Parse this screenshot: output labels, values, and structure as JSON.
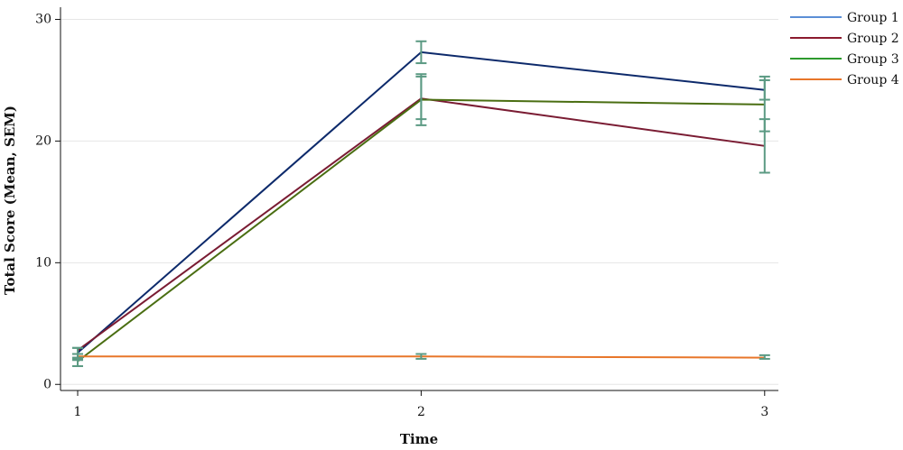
{
  "chart_data": {
    "type": "line",
    "xlabel": "Time",
    "ylabel": "Total Score (Mean, SEM)",
    "x": [
      1,
      2,
      3
    ],
    "x_tick_labels": [
      "1",
      "2",
      "3"
    ],
    "y_ticks": [
      0,
      10,
      20,
      30
    ],
    "y_tick_labels": [
      "0",
      "10",
      "20",
      "30"
    ],
    "xlim": [
      0.95,
      3.04
    ],
    "ylim": [
      -0.5,
      31
    ],
    "grid": "horizontal",
    "legend_position": "right",
    "error_bar_color": "#5b9a83",
    "series": [
      {
        "name": "Group 1",
        "legend_color": "#5b8fd6",
        "line_color": "#0d2a6b",
        "values": [
          2.6,
          27.3,
          24.2
        ],
        "sem_low": [
          2.0,
          26.4,
          23.4
        ],
        "sem_high": [
          3.0,
          28.2,
          25.0
        ]
      },
      {
        "name": "Group 2",
        "legend_color": "#8b1a2e",
        "line_color": "#7a1c33",
        "values": [
          2.8,
          23.5,
          19.6
        ],
        "sem_low": [
          2.2,
          21.8,
          17.4
        ],
        "sem_high": [
          3.0,
          25.3,
          21.8
        ]
      },
      {
        "name": "Group 3",
        "legend_color": "#2d9a2d",
        "line_color": "#4a6e12",
        "values": [
          1.9,
          23.4,
          23.0
        ],
        "sem_low": [
          1.5,
          21.3,
          20.8
        ],
        "sem_high": [
          2.5,
          25.5,
          25.3
        ]
      },
      {
        "name": "Group 4",
        "legend_color": "#e8762a",
        "line_color": "#e8762a",
        "values": [
          2.3,
          2.3,
          2.2
        ],
        "sem_low": [
          2.1,
          2.1,
          2.1
        ],
        "sem_high": [
          2.5,
          2.5,
          2.4
        ]
      }
    ]
  }
}
